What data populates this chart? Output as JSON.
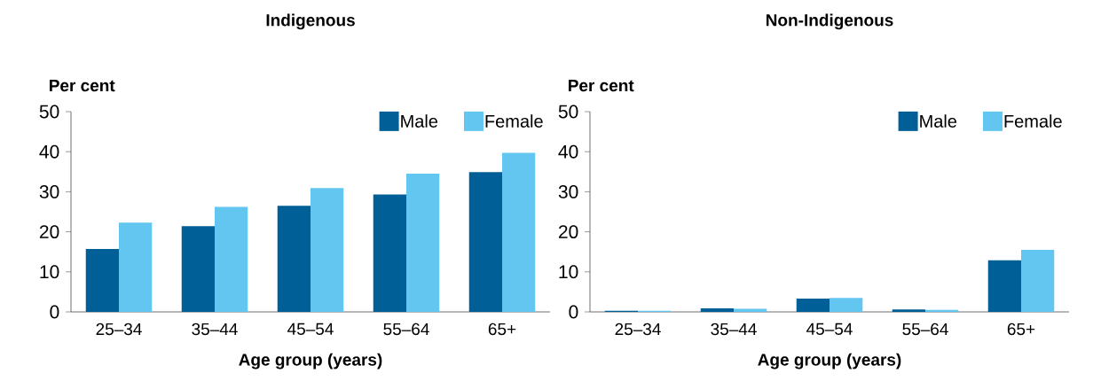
{
  "chart_data": [
    {
      "type": "bar",
      "title": "Indigenous",
      "xlabel": "Age group (years)",
      "ylabel": "Per cent",
      "categories": [
        "25–34",
        "35–44",
        "45–54",
        "55–64",
        "65+"
      ],
      "ylim": [
        0,
        50
      ],
      "yticks": [
        0,
        10,
        20,
        30,
        40,
        50
      ],
      "legend": "top right",
      "series": [
        {
          "name": "Male",
          "color": "#005f96",
          "values": [
            15.7,
            21.4,
            26.5,
            29.3,
            34.9
          ]
        },
        {
          "name": "Female",
          "color": "#62c6f0",
          "values": [
            22.3,
            26.2,
            30.9,
            34.5,
            39.7
          ]
        }
      ]
    },
    {
      "type": "bar",
      "title": "Non-Indigenous",
      "xlabel": "Age group (years)",
      "ylabel": "Per cent",
      "categories": [
        "25–34",
        "35–44",
        "45–54",
        "55–64",
        "65+"
      ],
      "ylim": [
        0,
        50
      ],
      "yticks": [
        0,
        10,
        20,
        30,
        40,
        50
      ],
      "legend": "top right",
      "series": [
        {
          "name": "Male",
          "color": "#005f96",
          "values": [
            0.3,
            0.9,
            3.3,
            0.6,
            12.9
          ]
        },
        {
          "name": "Female",
          "color": "#62c6f0",
          "values": [
            0.3,
            0.8,
            3.5,
            0.5,
            15.5
          ]
        }
      ]
    }
  ]
}
